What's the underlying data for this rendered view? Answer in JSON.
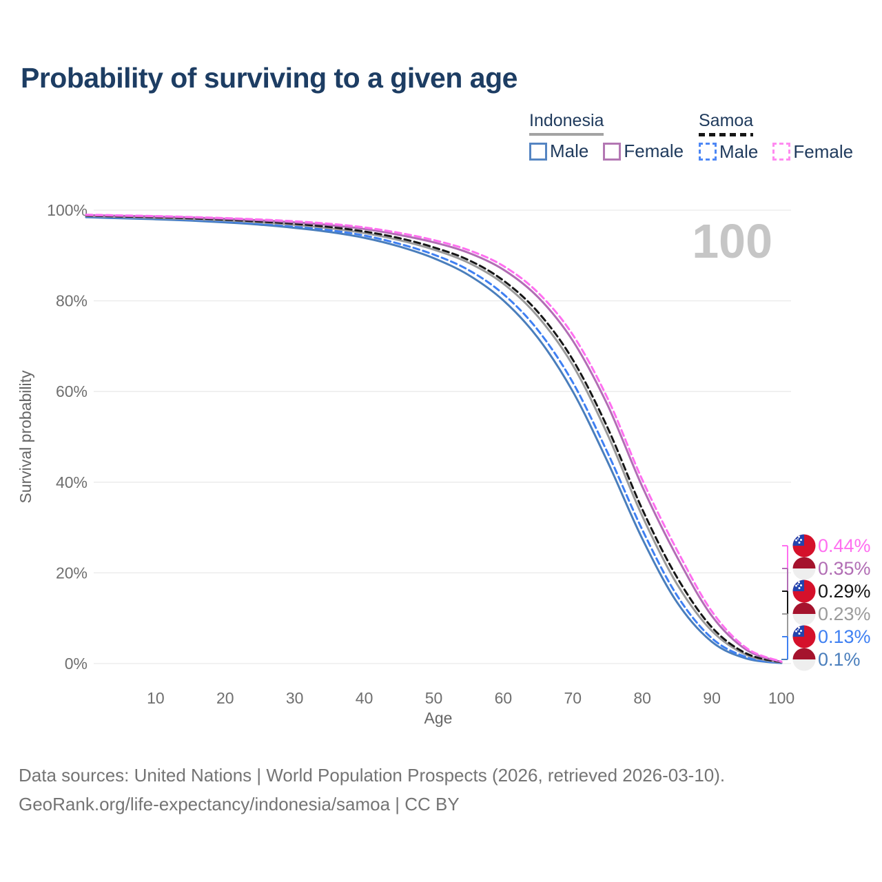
{
  "watermark": "100",
  "legend": {
    "groups": [
      {
        "label": "Indonesia",
        "line_style": "solid",
        "line_color": "#a3a3a3",
        "items": [
          {
            "label": "Male",
            "color": "#5585c2",
            "dashed": false
          },
          {
            "label": "Female",
            "color": "#b377b3",
            "dashed": false
          }
        ]
      },
      {
        "label": "Samoa",
        "line_style": "dashed",
        "line_color": "#161616",
        "items": [
          {
            "label": "Male",
            "color": "#4d87f5",
            "dashed": true
          },
          {
            "label": "Female",
            "color": "#ff8bf0",
            "dashed": true
          }
        ]
      }
    ]
  },
  "chart_data": {
    "type": "line",
    "title": "Probability of surviving to a given age",
    "xlabel": "Age",
    "ylabel": "Survival probability",
    "xlim": [
      0,
      100
    ],
    "ylim": [
      0,
      100
    ],
    "grid": "horizontal",
    "legend_position": "top-right",
    "x_ticks": [
      10,
      20,
      30,
      40,
      50,
      60,
      70,
      80,
      90,
      100
    ],
    "y_ticks": [
      "0%",
      "20%",
      "40%",
      "60%",
      "80%",
      "100%"
    ],
    "y_tick_values": [
      0,
      20,
      40,
      60,
      80,
      100
    ],
    "x": [
      0,
      5,
      10,
      15,
      20,
      25,
      30,
      35,
      40,
      45,
      50,
      55,
      60,
      65,
      70,
      75,
      80,
      85,
      90,
      95,
      100
    ],
    "series": [
      {
        "name": "Indonesia Male",
        "slug": "indonesia-male",
        "color": "#4a7ebc",
        "dashed": false,
        "flag": "indonesia",
        "end_label": "0.1%",
        "values": [
          98.45,
          98.2,
          98.0,
          97.7,
          97.3,
          96.8,
          96.1,
          95.2,
          93.9,
          92.0,
          89.4,
          85.7,
          80.1,
          71.8,
          60.0,
          44.5,
          27.5,
          13.5,
          4.8,
          1.1,
          0.1
        ]
      },
      {
        "name": "Samoa Male",
        "slug": "samoa-male",
        "color": "#3f80f2",
        "dashed": true,
        "flag": "samoa",
        "end_label": "0.13%",
        "values": [
          98.6,
          98.4,
          98.2,
          97.9,
          97.55,
          97.05,
          96.45,
          95.6,
          94.4,
          92.6,
          90.2,
          86.8,
          81.5,
          73.5,
          62.0,
          46.5,
          29.5,
          15.0,
          5.6,
          1.4,
          0.13
        ]
      },
      {
        "name": "Indonesia",
        "slug": "indonesia-all",
        "color": "#9b9b9b",
        "dashed": false,
        "flag": "indonesia",
        "end_label": "0.23%",
        "values": [
          98.7,
          98.5,
          98.3,
          98.05,
          97.75,
          97.3,
          96.75,
          96.0,
          94.95,
          93.4,
          91.3,
          88.4,
          83.8,
          76.5,
          65.8,
          50.5,
          32.5,
          17.5,
          7.2,
          1.9,
          0.23
        ]
      },
      {
        "name": "Samoa",
        "slug": "samoa-all",
        "color": "#161616",
        "dashed": true,
        "flag": "samoa",
        "end_label": "0.29%",
        "values": [
          98.8,
          98.6,
          98.45,
          98.2,
          97.9,
          97.5,
          97.0,
          96.3,
          95.3,
          93.85,
          91.8,
          89.0,
          84.5,
          77.5,
          67.0,
          52.0,
          34.0,
          19.0,
          8.0,
          2.2,
          0.29
        ]
      },
      {
        "name": "Indonesia Female",
        "slug": "indonesia-female",
        "color": "#b16db4",
        "dashed": false,
        "flag": "indonesia",
        "end_label": "0.35%",
        "values": [
          98.9,
          98.75,
          98.6,
          98.4,
          98.1,
          97.75,
          97.3,
          96.7,
          95.85,
          94.55,
          92.9,
          90.6,
          86.9,
          80.8,
          71.2,
          57.0,
          39.0,
          23.5,
          10.5,
          3.0,
          0.35
        ]
      },
      {
        "name": "Samoa Female",
        "slug": "samoa-female",
        "color": "#ff6ff0",
        "dashed": true,
        "flag": "samoa",
        "end_label": "0.44%",
        "values": [
          99.0,
          98.85,
          98.7,
          98.5,
          98.25,
          97.95,
          97.55,
          97.0,
          96.2,
          95.0,
          93.4,
          91.2,
          87.7,
          81.8,
          72.5,
          58.5,
          40.5,
          25.0,
          11.5,
          3.4,
          0.44
        ]
      }
    ]
  },
  "flags": {
    "samoa": {
      "field": "#d5112b",
      "canton": "#2344ae",
      "stars": "#ffffff"
    },
    "indonesia": {
      "top": "#a5132d",
      "bottom": "#eeeeee"
    }
  },
  "caption": {
    "line1": "Data sources: United Nations | World Population Prospects (2026, retrieved 2026-03-10).",
    "line2": "GeoRank.org/life-expectancy/indonesia/samoa | CC BY"
  }
}
